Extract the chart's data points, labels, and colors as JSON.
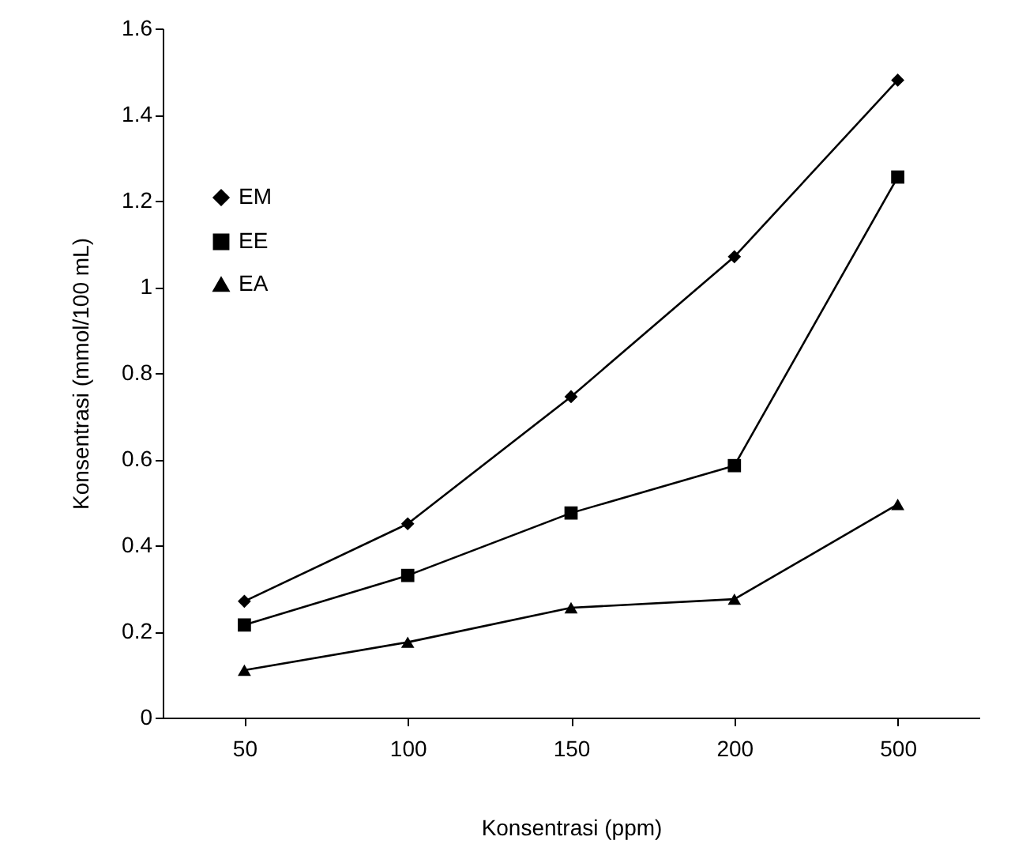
{
  "chart_data": {
    "type": "line",
    "xlabel": "Konsentrasi (ppm)",
    "ylabel": "Konsentrasi (mmol/100 mL)",
    "categories": [
      "50",
      "100",
      "150",
      "200",
      "500"
    ],
    "series": [
      {
        "name": "EM",
        "color": "#000000",
        "marker": "diamond",
        "values": [
          0.27,
          0.45,
          0.745,
          1.07,
          1.48
        ]
      },
      {
        "name": "EE",
        "color": "#000000",
        "marker": "square",
        "values": [
          0.215,
          0.33,
          0.475,
          0.585,
          1.255
        ]
      },
      {
        "name": "EA",
        "color": "#000000",
        "marker": "triangle",
        "values": [
          0.11,
          0.175,
          0.255,
          0.275,
          0.495
        ]
      }
    ],
    "ylim": [
      0,
      1.6
    ],
    "yticks": [
      {
        "value": 0,
        "label": "0"
      },
      0.2,
      0.4,
      0.6,
      0.8,
      {
        "value": 1,
        "label": "1"
      },
      1.2,
      1.4,
      1.6
    ],
    "grid": false,
    "legend": "top left",
    "line_style": "solid"
  }
}
